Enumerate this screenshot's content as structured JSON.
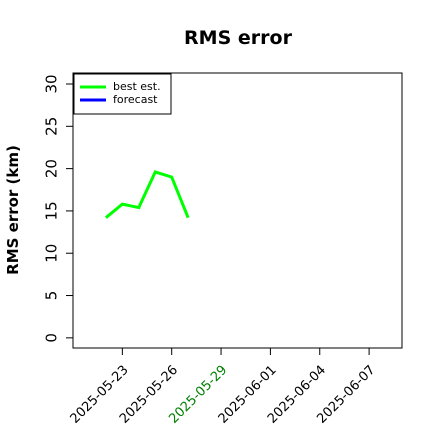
{
  "chart_data": {
    "type": "line",
    "title": "RMS error",
    "ylabel": "RMS error (km)",
    "x": [
      "2025-05-22",
      "2025-05-23",
      "2025-05-24",
      "2025-05-25",
      "2025-05-26",
      "2025-05-27"
    ],
    "series": [
      {
        "name": "best est.",
        "color": "#00ff00",
        "values": [
          14.2,
          15.8,
          15.4,
          19.6,
          19.0,
          14.2
        ]
      },
      {
        "name": "forecast",
        "color": "#0000ff",
        "values": [
          null,
          null,
          null,
          null,
          null,
          null
        ]
      }
    ],
    "xlim": [
      "2025-05-20",
      "2025-06-09"
    ],
    "xticks": [
      "2025-05-23",
      "2025-05-26",
      "2025-05-29",
      "2025-06-01",
      "2025-06-04",
      "2025-06-07"
    ],
    "xtick_highlight": {
      "index": 2,
      "color": "green"
    },
    "ylim": [
      -1.2,
      31.3
    ],
    "yticks": [
      0,
      5,
      10,
      15,
      20,
      25,
      30
    ],
    "legend": "upper left",
    "grid": false
  }
}
